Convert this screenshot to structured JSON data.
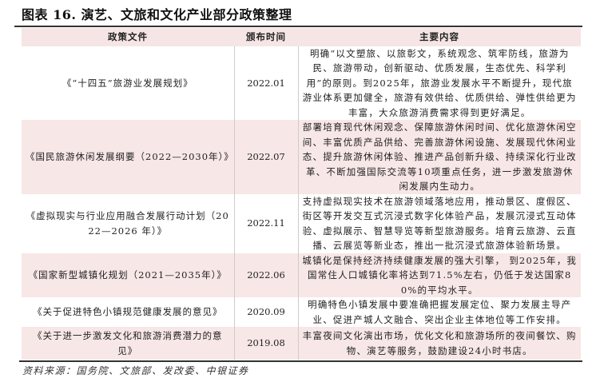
{
  "title": "图表 16. 演艺、文旅和文化产业部分政策整理",
  "columns": [
    "政策文件",
    "颁布时间",
    "主要内容"
  ],
  "rows": [
    {
      "doc": "《“十四五”旅游业发展规划》",
      "date": "2022.01",
      "content": "明确“以文塑旅、以旅彰文，系统观念、筑牢防线，旅游为民、旅游带动，创新驱动、优质发展，生态优先、科学利用”的原则。到2025年，旅游业发展水平不断提升，现代旅游业体系更加健全，旅游有效供给、优质供给、弹性供给更为丰富，大众旅游消费需求得到更好满足。"
    },
    {
      "doc": "《国民旅游休闲发展纲要（2022—2030年）》",
      "date": "2022.07",
      "content": "部署培育现代休闲观念、保障旅游休闲时间、优化旅游休闲空间、丰富优质产品供给、完善旅游休闲设施、发展现代休闲业态、提升旅游休闲体验、推进产品创新升级、持续深化行业改革、不断加强国际交流等10项重点任务，进一步激发旅游休闲发展内生动力。"
    },
    {
      "doc": "《虚拟现实与行业应用融合发展行动计划（2022—2026 年）》",
      "date": "2022.11",
      "content": "支持虚拟现实技术在旅游领域落地应用，推动景区、度假区、街区等开发交互式沉浸式数字化体验产品，发展沉浸式互动体验、虚拟展示、智慧导览等新型旅游服务。培育云旅游、云直播、云展览等新业态，推出一批沉浸式旅游体验新场景。"
    },
    {
      "doc": "《国家新型城镇化规划（2021—2035年）》",
      "date": "2022.06",
      "content": "城镇化是保持经济持续健康发展的强大引擎， 到2025年，我国常住人口城镇化率将达到71.5%左右，仍低于发达国家80%的平均水平。"
    },
    {
      "doc": "《关于促进特色小镇规范健康发展的意见》",
      "date": "2020.09",
      "content": "明确特色小镇发展中要准确把握发展定位、聚力发展主导产业、促进产城人文融合、突出企业主体地位等工作安排。"
    },
    {
      "doc": "《关于进一步激发文化和旅游消费潜力的意见》",
      "date": "2019.08",
      "content": "丰富夜间文化演出市场，优化文化和旅游场所的夜间餐饮、购物、演艺等服务，鼓励建设24小时书店。"
    }
  ],
  "source": "资料来源：国务院、文旅部、发改委、中银证券",
  "colors": {
    "header_bg": "#f6e5e5",
    "row_pink": "#f8e7e7"
  }
}
